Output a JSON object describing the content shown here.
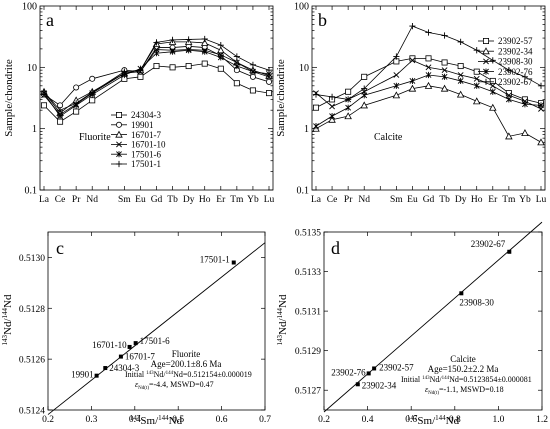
{
  "chart_data": [
    {
      "id": "a",
      "panel_label": "a",
      "type": "line",
      "mineral_label": "Fluorite",
      "ylabel": "Sample/chondrite",
      "yscale": "log",
      "ylim": [
        0.1,
        100
      ],
      "y_ticks": [
        "100",
        "10",
        "1",
        "0.1"
      ],
      "categories": [
        "La",
        "Ce",
        "Pr",
        "Nd",
        "",
        "Sm",
        "Eu",
        "Gd",
        "Tb",
        "Dy",
        "Ho",
        "Er",
        "Tm",
        "Yb",
        "Lu"
      ],
      "legend_position": "center-right",
      "series": [
        {
          "name": "24304-3",
          "marker": "square",
          "values": [
            2.4,
            1.3,
            1.9,
            2.9,
            null,
            6.5,
            7.0,
            10.5,
            10.0,
            10.5,
            11.5,
            9.5,
            5.5,
            4.2,
            3.8
          ]
        },
        {
          "name": "19901",
          "marker": "circle",
          "values": [
            3.6,
            2.4,
            4.7,
            6.5,
            null,
            9.0,
            8.5,
            21.0,
            21.0,
            22.0,
            21.0,
            15.5,
            9.0,
            7.0,
            5.8
          ]
        },
        {
          "name": "16701-7",
          "marker": "triangle",
          "values": [
            4.0,
            1.8,
            2.9,
            4.0,
            null,
            8.0,
            9.0,
            24.0,
            26.0,
            26.0,
            25.0,
            19.0,
            12.0,
            9.0,
            7.3
          ]
        },
        {
          "name": "16701-10",
          "marker": "x",
          "values": [
            3.5,
            1.7,
            2.5,
            3.8,
            null,
            8.0,
            8.5,
            19.5,
            19.0,
            19.5,
            19.0,
            16.0,
            12.0,
            8.5,
            7.0
          ]
        },
        {
          "name": "17501-6",
          "marker": "asterisk",
          "values": [
            3.8,
            1.6,
            2.4,
            3.6,
            null,
            7.5,
            9.5,
            17.0,
            18.0,
            19.0,
            18.0,
            14.5,
            10.5,
            8.5,
            7.8
          ]
        },
        {
          "name": "17501-1",
          "marker": "plus",
          "values": [
            4.0,
            2.0,
            2.6,
            3.9,
            null,
            8.5,
            9.0,
            25.5,
            28.0,
            28.5,
            29.0,
            23.0,
            15.0,
            11.0,
            9.0
          ]
        }
      ]
    },
    {
      "id": "b",
      "panel_label": "b",
      "type": "line",
      "mineral_label": "Calcite",
      "ylabel": "Sample/chondrite",
      "yscale": "log",
      "ylim": [
        0.1,
        100
      ],
      "y_ticks": [
        "100",
        "10",
        "1",
        "0.1"
      ],
      "categories": [
        "La",
        "Ce",
        "Pr",
        "Nd",
        "",
        "Sm",
        "Eu",
        "Gd",
        "Tb",
        "Dy",
        "Ho",
        "Er",
        "Tm",
        "Yb",
        "Lu"
      ],
      "legend_position": "top-right",
      "series": [
        {
          "name": "23902-57",
          "marker": "square",
          "values": [
            2.2,
            3.0,
            4.0,
            7.0,
            null,
            12.5,
            14.0,
            14.0,
            12.0,
            10.5,
            8.5,
            6.0,
            3.8,
            3.0,
            2.6
          ]
        },
        {
          "name": "23902-34",
          "marker": "triangle",
          "values": [
            1.0,
            1.4,
            1.6,
            2.4,
            null,
            3.5,
            4.5,
            5.0,
            4.5,
            3.6,
            2.8,
            2.2,
            0.75,
            0.85,
            0.6
          ]
        },
        {
          "name": "23908-30",
          "marker": "x",
          "values": [
            3.8,
            2.3,
            3.0,
            4.0,
            null,
            7.5,
            13.0,
            10.0,
            9.0,
            7.5,
            6.5,
            5.0,
            3.5,
            2.8,
            2.1
          ]
        },
        {
          "name": "23902-76",
          "marker": "asterisk",
          "values": [
            1.1,
            1.6,
            2.2,
            3.5,
            null,
            5.0,
            6.0,
            7.5,
            7.0,
            6.0,
            5.0,
            4.0,
            3.0,
            2.5,
            2.4
          ]
        },
        {
          "name": "23902-67",
          "marker": "plus",
          "values": [
            3.6,
            3.3,
            3.0,
            4.5,
            null,
            15.0,
            47.0,
            37.0,
            33.0,
            26.0,
            19.0,
            13.0,
            9.0,
            7.0,
            5.0
          ]
        }
      ]
    },
    {
      "id": "c",
      "panel_label": "c",
      "type": "scatter",
      "xlabel": "147Sm/144Nd",
      "ylabel": "143Nd/144Nd",
      "xlim": [
        0.2,
        0.7
      ],
      "ylim": [
        0.5124,
        0.5131
      ],
      "x_ticks": [
        "0.2",
        "0.3",
        "0.4",
        "0.5",
        "0.6",
        "0.7"
      ],
      "y_ticks": [
        "0.5124",
        "0.5126",
        "0.5128",
        "0.5130"
      ],
      "points": [
        {
          "label": "17501-1",
          "x": 0.628,
          "y": 0.51298
        },
        {
          "label": "17501-6",
          "x": 0.402,
          "y": 0.512663
        },
        {
          "label": "16701-10",
          "x": 0.388,
          "y": 0.512648
        },
        {
          "label": "16701-7",
          "x": 0.368,
          "y": 0.51261
        },
        {
          "label": "24304-3",
          "x": 0.332,
          "y": 0.512565
        },
        {
          "label": "19901",
          "x": 0.312,
          "y": 0.512535
        }
      ],
      "fit_line": {
        "x": [
          0.2,
          0.7
        ],
        "y": [
          0.512382,
          0.513058
        ]
      },
      "annotation": {
        "mineral": "Fluorite",
        "age": "Age=200.1±8.6 Ma",
        "initial_prefix": "Initial ",
        "initial_iso_a": "143",
        "initial_mid": "Nd/",
        "initial_iso_b": "144",
        "initial_suffix": "Nd=0.512154±0.000019",
        "eps_symbol": "ε",
        "eps_sub": "Nd(t)",
        "eps_suffix": "=-4.4, MSWD=0.47"
      }
    },
    {
      "id": "d",
      "panel_label": "d",
      "type": "scatter",
      "xlabel": "147Sm/144Nd",
      "ylabel": "143Nd/144Nd",
      "xlim": [
        0.2,
        1.2
      ],
      "ylim": [
        0.5126,
        0.5135
      ],
      "x_ticks": [
        "0.2",
        "0.4",
        "0.6",
        "0.8",
        "1.0",
        "1.2"
      ],
      "y_ticks": [
        "0.5127",
        "0.5129",
        "0.5131",
        "0.5133",
        "0.5135"
      ],
      "points": [
        {
          "label": "23902-67",
          "x": 1.05,
          "y": 0.5134
        },
        {
          "label": "23908-30",
          "x": 0.83,
          "y": 0.51319
        },
        {
          "label": "23902-57",
          "x": 0.43,
          "y": 0.51281
        },
        {
          "label": "23902-76",
          "x": 0.405,
          "y": 0.512785
        },
        {
          "label": "23902-34",
          "x": 0.355,
          "y": 0.51273
        }
      ],
      "fit_line": {
        "x": [
          0.2,
          1.2
        ],
        "y": [
          0.51259,
          0.51355
        ]
      },
      "annotation": {
        "mineral": "Calcite",
        "age": "Age=150.2±2.2 Ma",
        "initial_prefix": "Initial ",
        "initial_iso_a": "143",
        "initial_mid": "Nd/",
        "initial_iso_b": "144",
        "initial_suffix": "Nd=0.5123854±0.000081",
        "eps_symbol": "ε",
        "eps_sub": "Nd(t)",
        "eps_suffix": "=-1.1, MSWD=0.18"
      }
    }
  ]
}
